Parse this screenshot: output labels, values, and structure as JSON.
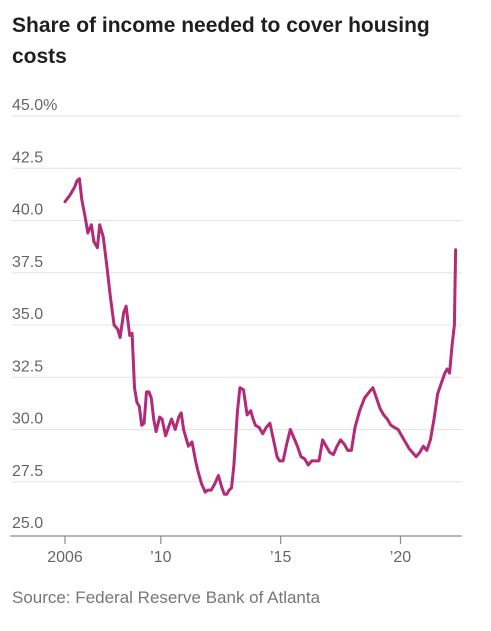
{
  "chart_data": {
    "type": "line",
    "title": "Share of income needed to cover housing costs",
    "source": "Source: Federal Reserve Bank of Atlanta",
    "xlabel": "",
    "ylabel": "",
    "y_ticks": [
      {
        "value": 45,
        "label": "45.0%"
      },
      {
        "value": 42.5,
        "label": "42.5"
      },
      {
        "value": 40,
        "label": "40.0"
      },
      {
        "value": 37.5,
        "label": "37.5"
      },
      {
        "value": 35,
        "label": "35.0"
      },
      {
        "value": 32.5,
        "label": "32.5"
      },
      {
        "value": 30,
        "label": "30.0"
      },
      {
        "value": 27.5,
        "label": "27.5"
      },
      {
        "value": 25,
        "label": "25.0"
      }
    ],
    "x_ticks": [
      {
        "value": 2006,
        "label": "2006"
      },
      {
        "value": 2010,
        "label": "’10"
      },
      {
        "value": 2015,
        "label": "’15"
      },
      {
        "value": 2020,
        "label": "’20"
      }
    ],
    "ylim": [
      25,
      45
    ],
    "xlim": [
      2006,
      2022.4
    ],
    "grid": true,
    "color": "#b22a78",
    "series": [
      {
        "name": "",
        "x": [
          2006.0,
          2006.2,
          2006.4,
          2006.5,
          2006.6,
          2006.7,
          2006.85,
          2006.95,
          2007.1,
          2007.2,
          2007.35,
          2007.45,
          2007.6,
          2007.75,
          2007.9,
          2008.05,
          2008.2,
          2008.3,
          2008.45,
          2008.55,
          2008.7,
          2008.8,
          2008.9,
          2009.0,
          2009.1,
          2009.2,
          2009.3,
          2009.4,
          2009.5,
          2009.6,
          2009.7,
          2009.8,
          2009.95,
          2010.05,
          2010.2,
          2010.35,
          2010.45,
          2010.6,
          2010.75,
          2010.85,
          2010.95,
          2011.05,
          2011.15,
          2011.3,
          2011.45,
          2011.55,
          2011.7,
          2011.85,
          2011.95,
          2012.1,
          2012.25,
          2012.4,
          2012.55,
          2012.65,
          2012.75,
          2012.85,
          2012.95,
          2013.05,
          2013.2,
          2013.3,
          2013.45,
          2013.6,
          2013.75,
          2013.85,
          2013.95,
          2014.1,
          2014.25,
          2014.4,
          2014.55,
          2014.7,
          2014.85,
          2014.95,
          2015.1,
          2015.25,
          2015.4,
          2015.55,
          2015.7,
          2015.85,
          2016.0,
          2016.15,
          2016.3,
          2016.45,
          2016.6,
          2016.75,
          2016.9,
          2017.05,
          2017.2,
          2017.35,
          2017.5,
          2017.65,
          2017.8,
          2017.95,
          2018.1,
          2018.3,
          2018.5,
          2018.7,
          2018.85,
          2019.0,
          2019.15,
          2019.3,
          2019.45,
          2019.6,
          2019.75,
          2019.9,
          2020.05,
          2020.2,
          2020.35,
          2020.5,
          2020.65,
          2020.8,
          2020.95,
          2021.1,
          2021.25,
          2021.4,
          2021.55,
          2021.7,
          2021.85,
          2021.95,
          2022.05,
          2022.15,
          2022.25,
          2022.3
        ],
        "values": [
          40.9,
          41.2,
          41.6,
          41.9,
          42.0,
          41.0,
          40.1,
          39.4,
          39.8,
          39.0,
          38.7,
          39.8,
          39.2,
          37.8,
          36.3,
          35.0,
          34.8,
          34.4,
          35.6,
          35.9,
          34.5,
          34.6,
          32.0,
          31.3,
          31.1,
          30.2,
          30.3,
          31.8,
          31.8,
          31.5,
          30.5,
          29.9,
          30.6,
          30.5,
          29.7,
          30.2,
          30.5,
          30.0,
          30.6,
          30.8,
          30.0,
          29.6,
          29.2,
          29.4,
          28.5,
          28.0,
          27.4,
          27.0,
          27.1,
          27.1,
          27.4,
          27.8,
          27.2,
          26.9,
          26.9,
          27.1,
          27.2,
          28.3,
          30.9,
          32.0,
          31.9,
          30.7,
          30.9,
          30.5,
          30.2,
          30.1,
          29.8,
          30.1,
          30.3,
          29.5,
          28.7,
          28.5,
          28.5,
          29.3,
          30.0,
          29.6,
          29.2,
          28.7,
          28.6,
          28.3,
          28.5,
          28.5,
          28.5,
          29.5,
          29.2,
          28.9,
          28.8,
          29.2,
          29.5,
          29.3,
          29.0,
          29.0,
          30.1,
          30.9,
          31.5,
          31.8,
          32.0,
          31.5,
          31.0,
          30.7,
          30.5,
          30.2,
          30.1,
          30.0,
          29.7,
          29.4,
          29.1,
          28.9,
          28.7,
          28.9,
          29.2,
          29.0,
          29.5,
          30.5,
          31.7,
          32.2,
          32.7,
          32.9,
          32.7,
          34.0,
          35.0,
          38.6
        ]
      }
    ]
  }
}
